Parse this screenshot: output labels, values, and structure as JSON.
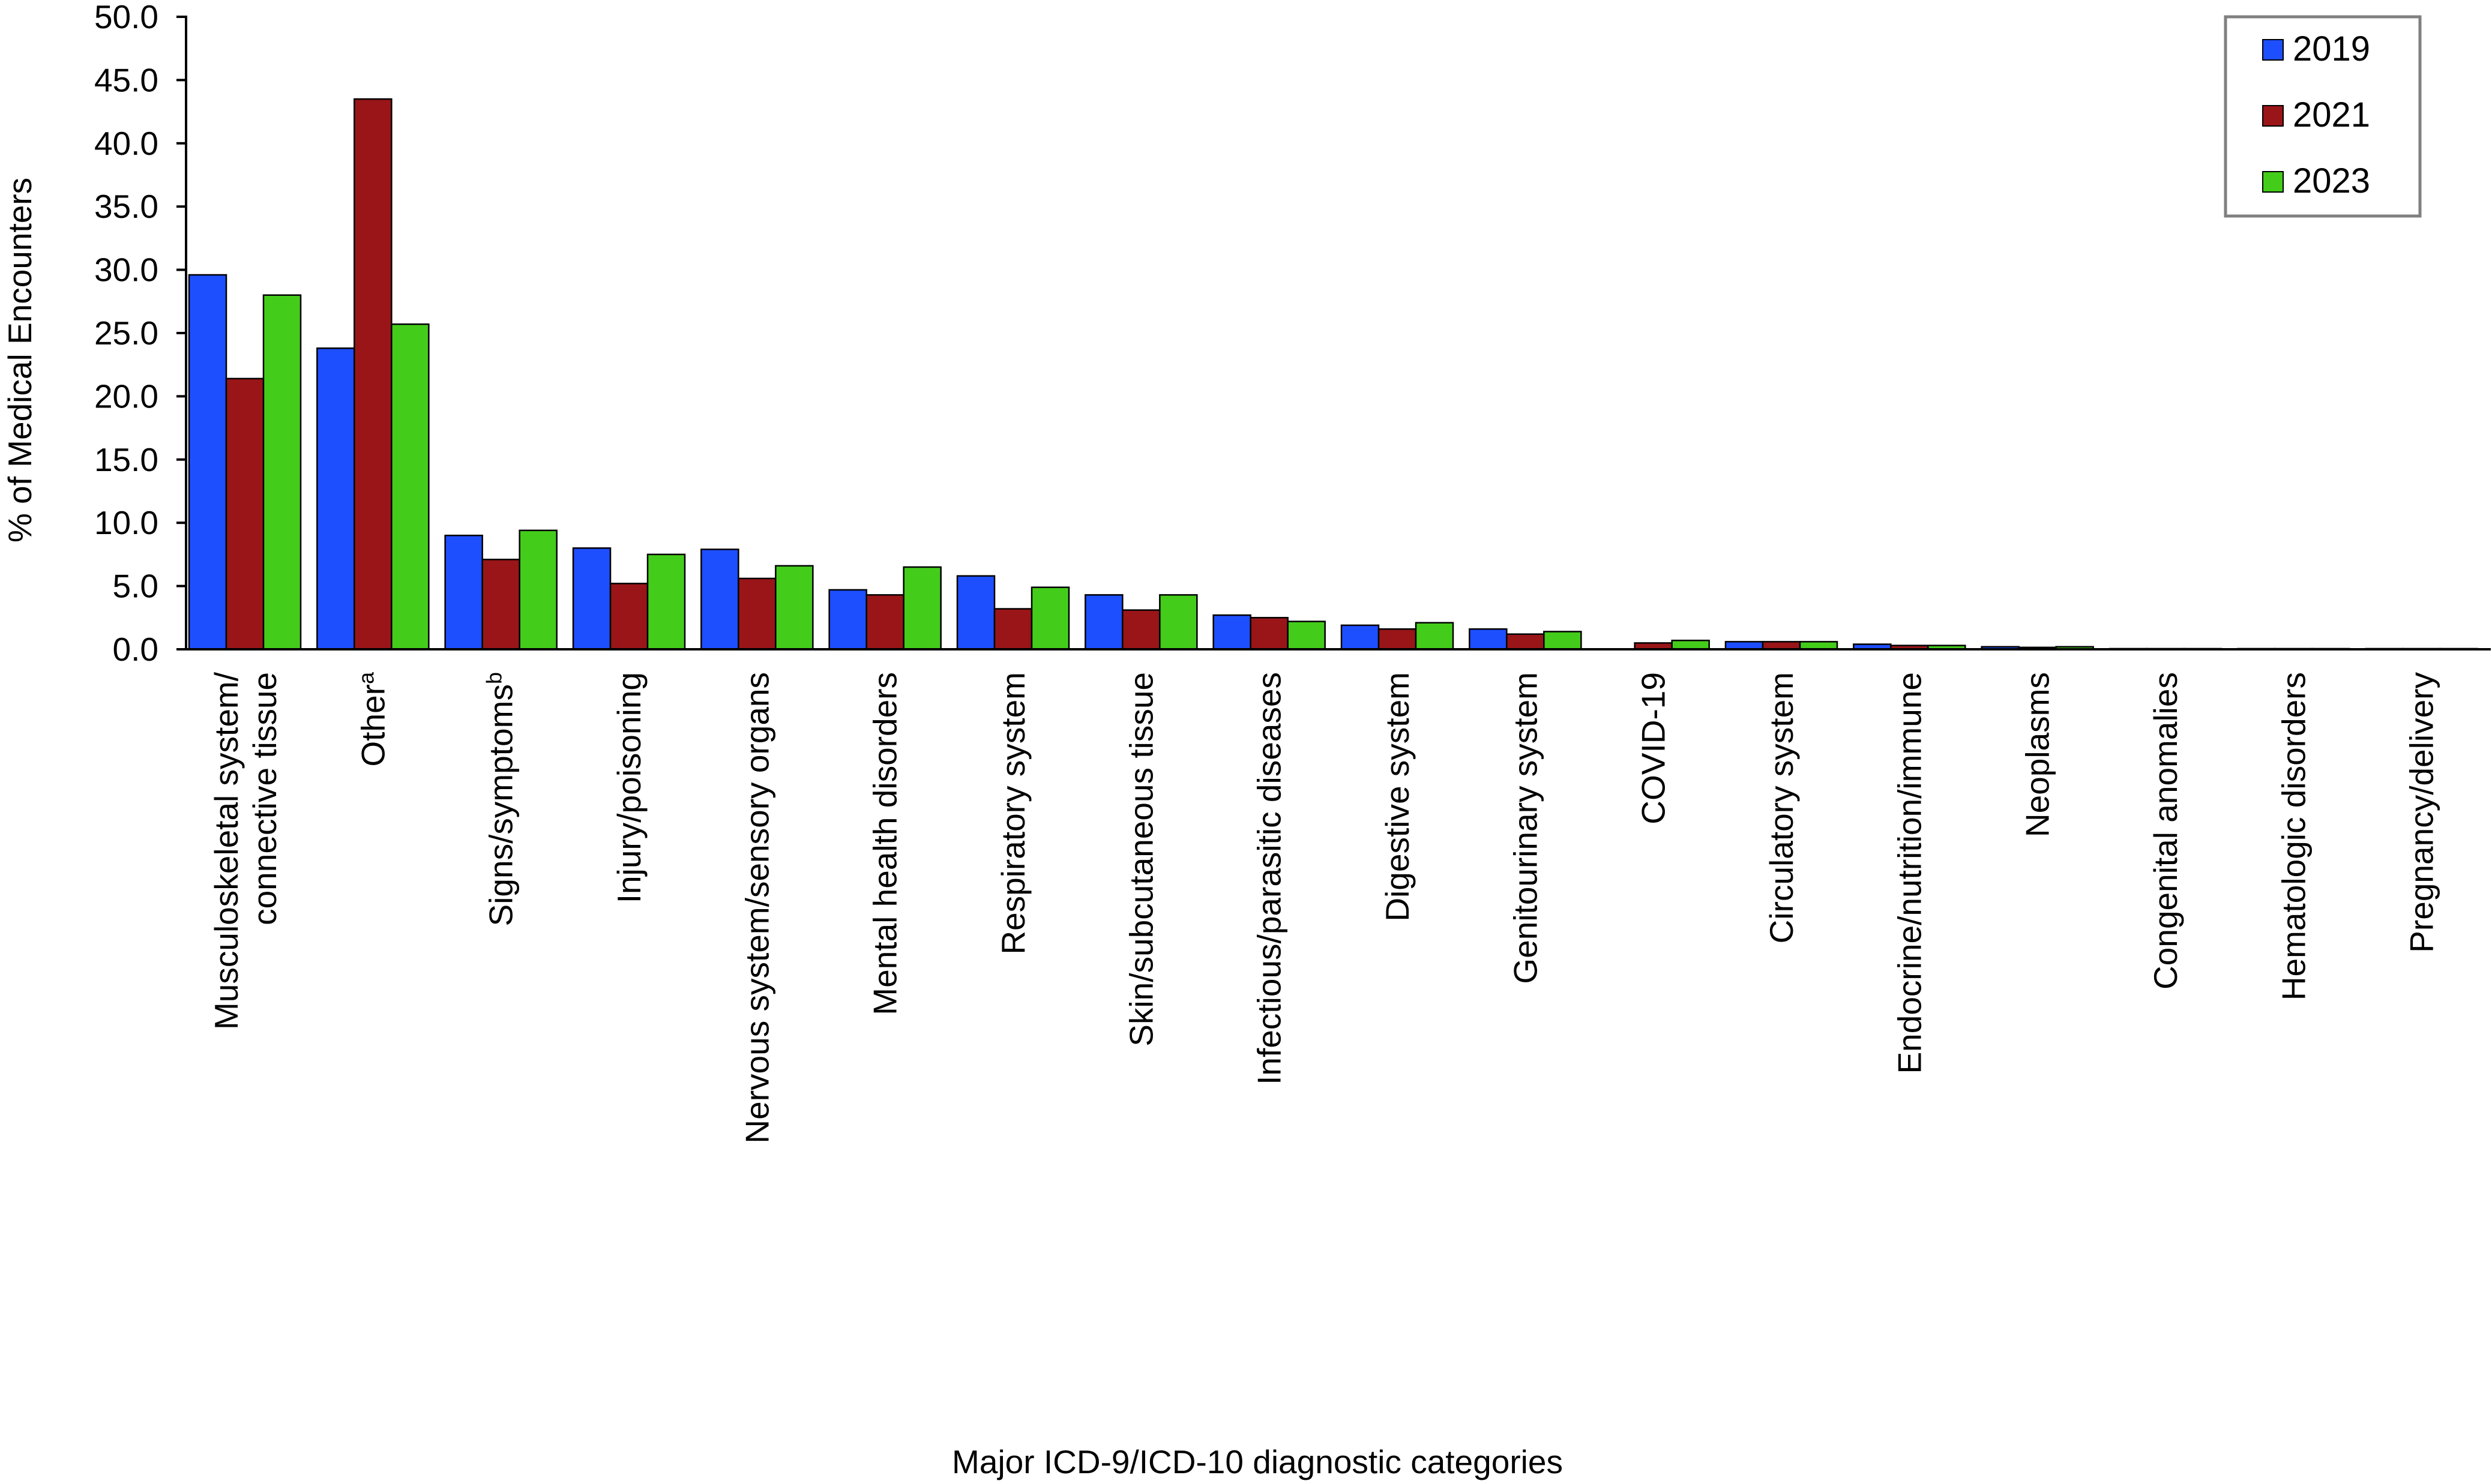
{
  "chart_data": {
    "type": "bar",
    "title": "",
    "xlabel": "Major ICD-9/ICD-10 diagnostic categories",
    "ylabel": "% of Medical Encounters",
    "ylim": [
      0,
      50
    ],
    "yticks": [
      "0.0",
      "5.0",
      "10.0",
      "15.0",
      "20.0",
      "25.0",
      "30.0",
      "35.0",
      "40.0",
      "45.0",
      "50.0"
    ],
    "grid": false,
    "legend_position": "top-right",
    "categories": [
      [
        "Musculoskeletal system/",
        "connective tissue"
      ],
      [
        "Other",
        "a"
      ],
      [
        "Signs/symptoms",
        "b"
      ],
      [
        "Injury/poisoning"
      ],
      [
        "Nervous system/sensory organs"
      ],
      [
        "Mental health disorders"
      ],
      [
        "Respiratory system"
      ],
      [
        "Skin/subcutaneous tissue"
      ],
      [
        "Infectious/parasitic diseases"
      ],
      [
        "Digestive system"
      ],
      [
        "Genitourinary system"
      ],
      [
        "COVID-19"
      ],
      [
        "Circulatory system"
      ],
      [
        "Endocrine/nutrition/immune"
      ],
      [
        "Neoplasms"
      ],
      [
        "Congenital anomalies"
      ],
      [
        "Hematologic disorders"
      ],
      [
        "Pregnancy/delivery"
      ]
    ],
    "series": [
      {
        "name": "2019",
        "color": "#1e4fff",
        "values": [
          29.6,
          23.8,
          9.0,
          8.0,
          7.9,
          4.7,
          5.8,
          4.3,
          2.7,
          1.9,
          1.6,
          0.0,
          0.6,
          0.4,
          0.2,
          0.05,
          0.05,
          0.05
        ]
      },
      {
        "name": "2021",
        "color": "#991518",
        "values": [
          21.4,
          43.5,
          7.1,
          5.2,
          5.6,
          4.3,
          3.2,
          3.1,
          2.5,
          1.6,
          1.2,
          0.5,
          0.6,
          0.3,
          0.15,
          0.05,
          0.05,
          0.05
        ]
      },
      {
        "name": "2023",
        "color": "#44cc1b",
        "values": [
          28.0,
          25.7,
          9.4,
          7.5,
          6.6,
          6.5,
          4.9,
          4.3,
          2.2,
          2.1,
          1.4,
          0.7,
          0.6,
          0.3,
          0.2,
          0.05,
          0.05,
          0.05
        ]
      }
    ]
  }
}
